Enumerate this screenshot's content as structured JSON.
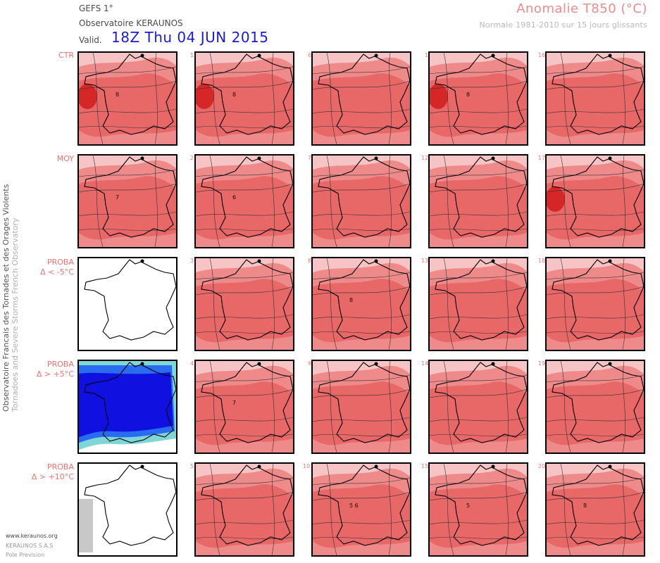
{
  "header": {
    "model": "GEFS 1°",
    "observatory": "Observatoire KERAUNOS",
    "valid_label": "Valid.",
    "valid_value": "18Z Thu 04 JUN 2015",
    "title": "Anomalie T850 (°C)",
    "subtitle": "Normale 1981-2010 sur 15 jours glissants"
  },
  "side_text": {
    "line1": "Observatoire Francais des Tornades et des Orages Violents",
    "line2": "Tornadoes and Severe Storms French Observatory"
  },
  "row_labels": [
    {
      "line1": "CTR",
      "line2": ""
    },
    {
      "line1": "MOY",
      "line2": ""
    },
    {
      "line1": "PROBA",
      "line2": "Δ < -5°C"
    },
    {
      "line1": "PROBA",
      "line2": "Δ > +5°C"
    },
    {
      "line1": "PROBA",
      "line2": "Δ > +10°C"
    }
  ],
  "members": [
    [
      "1",
      "6",
      "11",
      "16"
    ],
    [
      "2",
      "7",
      "12",
      "17"
    ],
    [
      "3",
      "8",
      "13",
      "18"
    ],
    [
      "4",
      "9",
      "14",
      "19"
    ],
    [
      "5",
      "10",
      "15",
      "20"
    ]
  ],
  "contour_labels": [
    [
      "8",
      "8",
      "",
      "8",
      ""
    ],
    [
      "7",
      "6",
      "",
      "",
      ""
    ],
    [
      "",
      "",
      "8",
      "",
      ""
    ],
    [
      "",
      "7",
      "",
      "",
      ""
    ],
    [
      "",
      "",
      "5 6",
      "5",
      "8"
    ]
  ],
  "colors": {
    "anomaly_light": "#f6c4c4",
    "anomaly_mid": "#ef8a8a",
    "anomaly_strong": "#e24a4a",
    "anomaly_max": "#d01818",
    "proba_high": "#1010e0",
    "proba_mid": "#2a6cf0",
    "proba_low": "#7fd6d6",
    "proba_edge": "#c8c8c8"
  },
  "footer": {
    "website": "www.keraunos.org",
    "company": "KERAUNOS S.A.S",
    "service": "Pole Prevision"
  }
}
